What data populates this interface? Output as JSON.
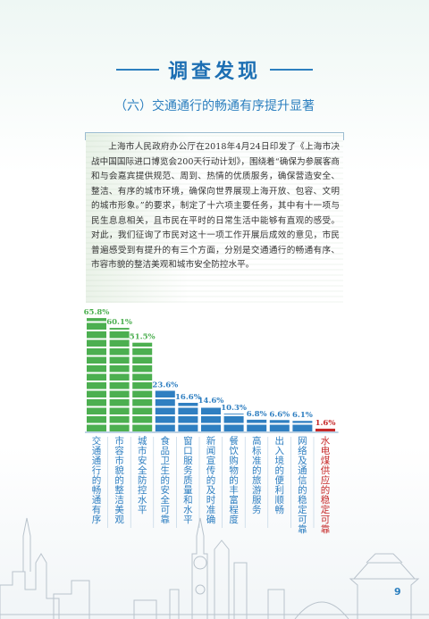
{
  "header": {
    "title": "调查发现"
  },
  "subtitle": "（六）交通通行的畅通有序提升显著",
  "paragraph": "上海市人民政府办公厅在2018年4月24日印发了《上海市决战中国国际进口博览会200天行动计划》，围绕着“确保为参展客商和与会嘉宾提供规范、周到、热情的优质服务，确保营造安全、整洁、有序的城市环境，确保向世界展现上海开放、包容、文明的城市形象。”的要求，制定了十六项主要任务，其中有十一项与民生息息相关，且市民在平时的日常生活中能够有直观的感受。对此，我们征询了市民对这十一项工作开展后成效的意见，市民普遍感受到有提升的有三个方面，分别是交通通行的畅通有序、市容市貌的整洁美观和城市安全防控水平。",
  "colors": {
    "green": "#4caf50",
    "blue": "#2f7fc1",
    "red": "#c62828",
    "title": "#1d6fb3"
  },
  "chart_data": {
    "type": "bar",
    "categories": [
      "交通通行的畅通有序",
      "市容市貌的整洁美观",
      "城市安全防控水平",
      "食品卫生的安全可靠",
      "窗口服务质量和水平",
      "新闻宣传的及时准确",
      "餐饮购物的丰富程度",
      "高标准的旅游服务",
      "出入境的便利顺畅",
      "网络及通信的稳定可靠",
      "水电煤供应的稳定可靠"
    ],
    "values": [
      65.8,
      60.1,
      51.5,
      23.6,
      16.6,
      14.6,
      10.3,
      6.8,
      6.6,
      6.1,
      1.6
    ],
    "labels": [
      "65.8%",
      "60.1%",
      "51.5%",
      "23.6%",
      "16.6%",
      "14.6%",
      "10.3%",
      "6.8%",
      "6.6%",
      "6.1%",
      "1.6%"
    ],
    "bar_colors": [
      "green",
      "green",
      "green",
      "blue",
      "blue",
      "blue",
      "blue",
      "blue",
      "blue",
      "blue",
      "red"
    ],
    "ylim": [
      0,
      70
    ],
    "grid": false,
    "legend": "none"
  },
  "page_number": "9"
}
